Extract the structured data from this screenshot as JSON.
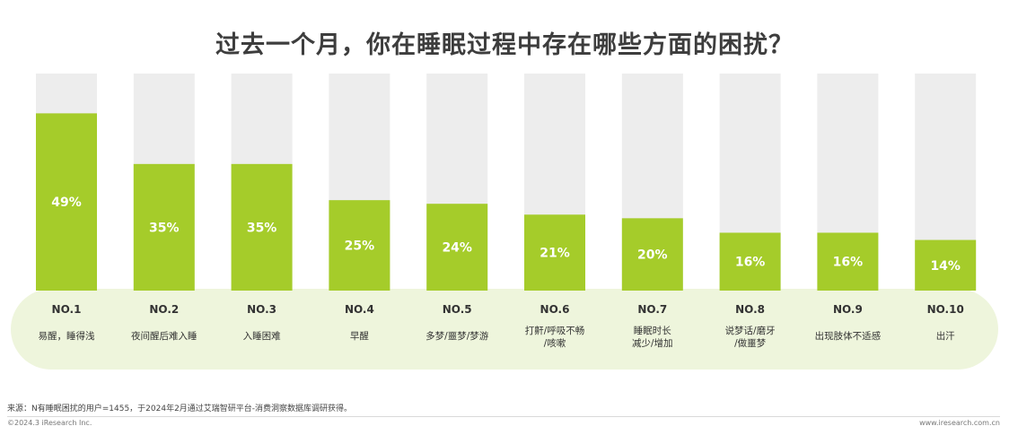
{
  "title": "过去一个月，你在睡眠过程中存在哪些方面的困扰？",
  "colors": {
    "bar": "#a5cc2a",
    "track": "#ededed",
    "band": "#eef5dc",
    "label": "#ffffff",
    "text": "#333333"
  },
  "chart_data": {
    "type": "bar",
    "title": "过去一个月，你在睡眠过程中存在哪些方面的困扰？",
    "ranks": [
      "NO.1",
      "NO.2",
      "NO.3",
      "NO.4",
      "NO.5",
      "NO.6",
      "NO.7",
      "NO.8",
      "NO.9",
      "NO.10"
    ],
    "categories": [
      [
        "易醒，睡得浅"
      ],
      [
        "夜间醒后难入睡"
      ],
      [
        "入睡困难"
      ],
      [
        "早醒"
      ],
      [
        "多梦/噩梦/梦游"
      ],
      [
        "打鼾/呼吸不畅",
        "/咳嗽"
      ],
      [
        "睡眠时长",
        "减少/增加"
      ],
      [
        "说梦话/磨牙",
        "/做噩梦"
      ],
      [
        "出现肢体不适感"
      ],
      [
        "出汗"
      ]
    ],
    "values": [
      49,
      35,
      35,
      25,
      24,
      21,
      20,
      16,
      16,
      14
    ],
    "value_labels": [
      "49%",
      "35%",
      "35%",
      "25%",
      "24%",
      "21%",
      "20%",
      "16%",
      "16%",
      "14%"
    ],
    "ylim": [
      0,
      100
    ],
    "grid": false,
    "legend": "none"
  },
  "footer": {
    "source": "来源：N有睡眠困扰的用户=1455，于2024年2月通过艾瑞智研平台-消费洞察数据库调研获得。",
    "copyright": "©2024.3 iResearch Inc.",
    "url": "www.iresearch.com.cn"
  }
}
